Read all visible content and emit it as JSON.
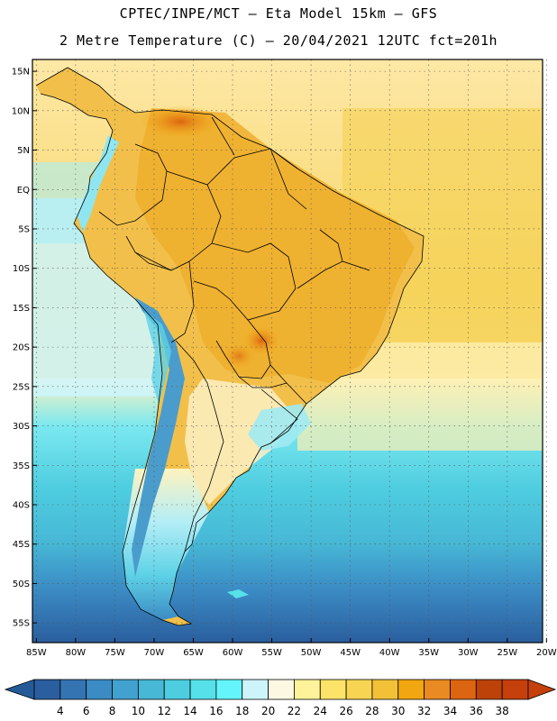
{
  "header": {
    "line1": "CPTEC/INPE/MCT –  Eta Model 15km – GFS",
    "line2": "2 Metre Temperature (C) – 20/04/2021 12UTC fct=201h"
  },
  "map": {
    "lat_labels": [
      "15N",
      "10N",
      "5N",
      "EQ",
      "5S",
      "10S",
      "15S",
      "20S",
      "25S",
      "30S",
      "35S",
      "40S",
      "45S",
      "50S",
      "55S"
    ],
    "lat_values": [
      15,
      10,
      5,
      0,
      -5,
      -10,
      -15,
      -20,
      -25,
      -30,
      -35,
      -40,
      -45,
      -50,
      -55
    ],
    "lon_labels": [
      "85W",
      "80W",
      "75W",
      "70W",
      "65W",
      "60W",
      "55W",
      "50W",
      "45W",
      "40W",
      "35W",
      "30W",
      "25W",
      "20W"
    ],
    "lon_values": [
      -85,
      -80,
      -75,
      -70,
      -65,
      -60,
      -55,
      -50,
      -45,
      -40,
      -35,
      -30,
      -25,
      -20
    ],
    "extent": {
      "lon_min": -85.5,
      "lon_max": -20.5,
      "lat_min": -57.5,
      "lat_max": 16.5
    }
  },
  "colorbar": {
    "labels": [
      "4",
      "6",
      "8",
      "10",
      "12",
      "14",
      "16",
      "18",
      "20",
      "22",
      "24",
      "26",
      "28",
      "30",
      "32",
      "34",
      "36",
      "38"
    ],
    "colors": [
      "#2a5e9e",
      "#3474b2",
      "#3b8bc4",
      "#42a2cf",
      "#47b8d6",
      "#4ecde0",
      "#55e0ea",
      "#63f5fb",
      "#cdf4fb",
      "#fdf8e2",
      "#fef39a",
      "#fde468",
      "#f7d552",
      "#f2c138",
      "#f2a60f",
      "#ea8a22",
      "#db6511",
      "#bc420a",
      "#c5400a"
    ],
    "under_color": "#245a98",
    "over_color": "#c5400a"
  }
}
